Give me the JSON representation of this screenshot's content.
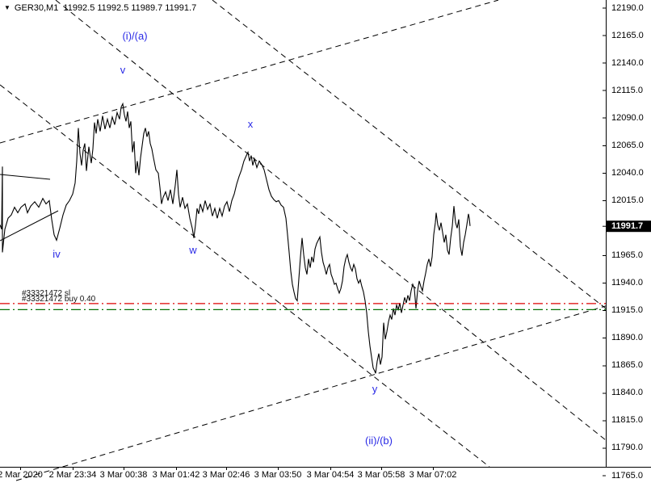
{
  "header": {
    "dropdown_icon": "▼",
    "symbol": "GER30,M1",
    "open": "11992.5",
    "high": "11992.5",
    "low": "11989.7",
    "close": "11991.7"
  },
  "chart_data": {
    "type": "line",
    "title": "GER30 M1 line chart with Elliott wave annotations",
    "symbol": "GER30",
    "period": "M1",
    "grid": false,
    "colors": {
      "background": "#ffffff",
      "price_line": "#000000",
      "trendline": "#000000",
      "wave_label": "#2a2ae6",
      "axis_text": "#000000",
      "sl_line": "#dd0000",
      "buy_line": "#067006",
      "price_tag_bg": "#000000",
      "price_tag_text": "#ffffff"
    },
    "x_axis": {
      "labels": [
        {
          "text": "2 Mar 2020",
          "t": 25
        },
        {
          "text": "2 Mar 23:34",
          "t": 90
        },
        {
          "text": "3 Mar 00:38",
          "t": 153
        },
        {
          "text": "3 Mar 01:42",
          "t": 218
        },
        {
          "text": "3 Mar 02:46",
          "t": 280
        },
        {
          "text": "3 Mar 03:50",
          "t": 344
        },
        {
          "text": "3 Mar 04:54",
          "t": 409
        },
        {
          "text": "3 Mar 05:58",
          "t": 472
        },
        {
          "text": "3 Mar 07:02",
          "t": 536
        }
      ]
    },
    "y_axis": {
      "labels": [
        12190.0,
        12165.0,
        12140.0,
        12115.0,
        12090.0,
        12065.0,
        12040.0,
        12015.0,
        11965.0,
        11940.0,
        11915.0,
        11890.0,
        11865.0,
        11840.0,
        11815.0,
        11790.0,
        11765.0
      ],
      "min": 11765.0,
      "max": 12190.0
    },
    "current_price": 11991.7,
    "series": {
      "name": "GER30 M1 close",
      "points": [
        [
          0,
          11993
        ],
        [
          2,
          11989
        ],
        [
          3,
          12046
        ],
        [
          3,
          11968
        ],
        [
          6,
          11989
        ],
        [
          10,
          11999
        ],
        [
          14,
          12002
        ],
        [
          18,
          12009
        ],
        [
          22,
          12004
        ],
        [
          26,
          12009
        ],
        [
          31,
          12012
        ],
        [
          34,
          12004
        ],
        [
          38,
          12010
        ],
        [
          43,
          12014
        ],
        [
          48,
          12009
        ],
        [
          53,
          12017
        ],
        [
          57,
          12012
        ],
        [
          61,
          12015
        ],
        [
          64,
          11998
        ],
        [
          67,
          11984
        ],
        [
          70,
          11979
        ],
        [
          74,
          11990
        ],
        [
          78,
          12002
        ],
        [
          82,
          12011
        ],
        [
          86,
          12015
        ],
        [
          90,
          12021
        ],
        [
          93,
          12031
        ],
        [
          95,
          12051
        ],
        [
          97,
          12081
        ],
        [
          99,
          12058
        ],
        [
          101,
          12047
        ],
        [
          103,
          12061
        ],
        [
          105,
          12067
        ],
        [
          107,
          12042
        ],
        [
          110,
          12064
        ],
        [
          113,
          12049
        ],
        [
          115,
          12062
        ],
        [
          117,
          12086
        ],
        [
          119,
          12076
        ],
        [
          121,
          12089
        ],
        [
          124,
          12078
        ],
        [
          127,
          12092
        ],
        [
          130,
          12080
        ],
        [
          133,
          12089
        ],
        [
          136,
          12081
        ],
        [
          139,
          12091
        ],
        [
          142,
          12084
        ],
        [
          145,
          12095
        ],
        [
          148,
          12089
        ],
        [
          150,
          12100
        ],
        [
          152,
          12103
        ],
        [
          154,
          12093
        ],
        [
          156,
          12087
        ],
        [
          158,
          12096
        ],
        [
          160,
          12081
        ],
        [
          162,
          12087
        ],
        [
          164,
          12059
        ],
        [
          166,
          12069
        ],
        [
          168,
          12040
        ],
        [
          170,
          12051
        ],
        [
          172,
          12038
        ],
        [
          174,
          12054
        ],
        [
          176,
          12065
        ],
        [
          178,
          12076
        ],
        [
          180,
          12081
        ],
        [
          182,
          12073
        ],
        [
          184,
          12078
        ],
        [
          186,
          12067
        ],
        [
          188,
          12062
        ],
        [
          190,
          12054
        ],
        [
          193,
          12043
        ],
        [
          196,
          12040
        ],
        [
          198,
          12027
        ],
        [
          200,
          12012
        ],
        [
          202,
          12018
        ],
        [
          205,
          12023
        ],
        [
          208,
          12015
        ],
        [
          211,
          12025
        ],
        [
          214,
          12012
        ],
        [
          217,
          12029
        ],
        [
          219,
          12043
        ],
        [
          221,
          12021
        ],
        [
          223,
          12009
        ],
        [
          226,
          12018
        ],
        [
          229,
          12008
        ],
        [
          232,
          12012
        ],
        [
          235,
          11999
        ],
        [
          238,
          11990
        ],
        [
          240,
          11981
        ],
        [
          242,
          11993
        ],
        [
          244,
          12008
        ],
        [
          246,
          12003
        ],
        [
          248,
          12012
        ],
        [
          251,
          12005
        ],
        [
          254,
          12015
        ],
        [
          257,
          12007
        ],
        [
          260,
          12012
        ],
        [
          263,
          12001
        ],
        [
          266,
          12008
        ],
        [
          269,
          11999
        ],
        [
          272,
          12008
        ],
        [
          275,
          12001
        ],
        [
          278,
          12010
        ],
        [
          281,
          12014
        ],
        [
          284,
          12005
        ],
        [
          287,
          12015
        ],
        [
          290,
          12021
        ],
        [
          293,
          12030
        ],
        [
          296,
          12037
        ],
        [
          299,
          12043
        ],
        [
          302,
          12051
        ],
        [
          305,
          12056
        ],
        [
          307,
          12059
        ],
        [
          309,
          12051
        ],
        [
          311,
          12056
        ],
        [
          313,
          12047
        ],
        [
          315,
          12053
        ],
        [
          318,
          12045
        ],
        [
          321,
          12051
        ],
        [
          324,
          12048
        ],
        [
          327,
          12043
        ],
        [
          330,
          12034
        ],
        [
          333,
          12025
        ],
        [
          336,
          12019
        ],
        [
          339,
          12016
        ],
        [
          342,
          12014
        ],
        [
          345,
          12015
        ],
        [
          348,
          12011
        ],
        [
          351,
          12009
        ],
        [
          354,
          11999
        ],
        [
          356,
          11984
        ],
        [
          358,
          11968
        ],
        [
          360,
          11951
        ],
        [
          362,
          11939
        ],
        [
          364,
          11932
        ],
        [
          366,
          11926
        ],
        [
          368,
          11924
        ],
        [
          370,
          11944
        ],
        [
          372,
          11964
        ],
        [
          374,
          11981
        ],
        [
          376,
          11966
        ],
        [
          378,
          11954
        ],
        [
          380,
          11948
        ],
        [
          382,
          11962
        ],
        [
          384,
          11954
        ],
        [
          386,
          11964
        ],
        [
          388,
          11959
        ],
        [
          390,
          11971
        ],
        [
          392,
          11976
        ],
        [
          394,
          11979
        ],
        [
          396,
          11982
        ],
        [
          398,
          11968
        ],
        [
          400,
          11959
        ],
        [
          402,
          11954
        ],
        [
          404,
          11948
        ],
        [
          406,
          11954
        ],
        [
          408,
          11957
        ],
        [
          410,
          11948
        ],
        [
          412,
          11944
        ],
        [
          414,
          11939
        ],
        [
          416,
          11940
        ],
        [
          418,
          11935
        ],
        [
          420,
          11931
        ],
        [
          422,
          11935
        ],
        [
          424,
          11942
        ],
        [
          426,
          11955
        ],
        [
          428,
          11962
        ],
        [
          430,
          11966
        ],
        [
          432,
          11959
        ],
        [
          434,
          11954
        ],
        [
          436,
          11951
        ],
        [
          438,
          11957
        ],
        [
          440,
          11953
        ],
        [
          442,
          11944
        ],
        [
          444,
          11940
        ],
        [
          446,
          11943
        ],
        [
          448,
          11937
        ],
        [
          450,
          11932
        ],
        [
          452,
          11924
        ],
        [
          454,
          11913
        ],
        [
          456,
          11896
        ],
        [
          458,
          11883
        ],
        [
          460,
          11873
        ],
        [
          462,
          11863
        ],
        [
          464,
          11860
        ],
        [
          465,
          11858
        ],
        [
          467,
          11869
        ],
        [
          469,
          11876
        ],
        [
          471,
          11866
        ],
        [
          473,
          11873
        ],
        [
          475,
          11904
        ],
        [
          477,
          11889
        ],
        [
          479,
          11896
        ],
        [
          481,
          11905
        ],
        [
          483,
          11911
        ],
        [
          485,
          11907
        ],
        [
          487,
          11917
        ],
        [
          489,
          11911
        ],
        [
          491,
          11920
        ],
        [
          493,
          11916
        ],
        [
          495,
          11922
        ],
        [
          497,
          11913
        ],
        [
          499,
          11920
        ],
        [
          501,
          11927
        ],
        [
          503,
          11922
        ],
        [
          505,
          11929
        ],
        [
          507,
          11924
        ],
        [
          509,
          11933
        ],
        [
          511,
          11939
        ],
        [
          513,
          11935
        ],
        [
          515,
          11917
        ],
        [
          517,
          11933
        ],
        [
          519,
          11942
        ],
        [
          521,
          11937
        ],
        [
          523,
          11933
        ],
        [
          525,
          11942
        ],
        [
          527,
          11949
        ],
        [
          529,
          11957
        ],
        [
          531,
          11962
        ],
        [
          533,
          11955
        ],
        [
          535,
          11964
        ],
        [
          537,
          11984
        ],
        [
          539,
          11995
        ],
        [
          540,
          12004
        ],
        [
          542,
          11993
        ],
        [
          544,
          11988
        ],
        [
          546,
          11995
        ],
        [
          548,
          11986
        ],
        [
          550,
          11977
        ],
        [
          552,
          11984
        ],
        [
          554,
          11970
        ],
        [
          556,
          11966
        ],
        [
          558,
          11981
        ],
        [
          560,
          11992
        ],
        [
          562,
          12010
        ],
        [
          564,
          11995
        ],
        [
          566,
          11990
        ],
        [
          568,
          11998
        ],
        [
          570,
          11973
        ],
        [
          572,
          11965
        ],
        [
          574,
          11977
        ],
        [
          576,
          11984
        ],
        [
          578,
          11993
        ],
        [
          580,
          12003
        ],
        [
          581,
          11999
        ],
        [
          582,
          11992
        ]
      ]
    },
    "order_lines": [
      {
        "label": "#33321472 sl",
        "price": 11921.4,
        "color": "#dd0000",
        "style": "dash-dot"
      },
      {
        "label": "#33321472 buy 0.40",
        "price": 11915.9,
        "color": "#067006",
        "style": "dash-dot"
      }
    ],
    "trendlines": [
      {
        "name": "descending-channel-upper",
        "style": "dashed",
        "points": [
          [
            69,
            12197.3
          ],
          [
            750,
            11797.3
          ]
        ]
      },
      {
        "name": "descending-channel-middle",
        "style": "dashed",
        "points": [
          [
            263,
            12197.3
          ],
          [
            750,
            11917.0
          ]
        ]
      },
      {
        "name": "descending-channel-lower",
        "style": "dashed",
        "points": [
          [
            0,
            12120.3
          ],
          [
            606,
            11773.1
          ]
        ]
      },
      {
        "name": "ascending-line-upper",
        "style": "dashed",
        "points": [
          [
            0,
            12067.4
          ],
          [
            617,
            12197.3
          ]
        ]
      },
      {
        "name": "ascending-line-lower",
        "style": "dashed",
        "points": [
          [
            20,
            11760.6
          ],
          [
            750,
            11919.2
          ]
        ]
      },
      {
        "name": "wedge-line-upper",
        "style": "solid",
        "points": [
          [
            0,
            12038.8
          ],
          [
            62,
            12034.4
          ]
        ]
      },
      {
        "name": "wedge-line-lower",
        "style": "solid",
        "points": [
          [
            0,
            11978.6
          ],
          [
            72,
            12005.8
          ]
        ]
      }
    ],
    "wave_labels": [
      {
        "text": "(i)/(a)",
        "t": 167,
        "price": 12164.3
      },
      {
        "text": "v",
        "t": 152,
        "price": 12133.5
      },
      {
        "text": "x",
        "t": 310,
        "price": 12084.3
      },
      {
        "text": "w",
        "t": 239,
        "price": 11969.8
      },
      {
        "text": "iv",
        "t": 70,
        "price": 11966.1
      },
      {
        "text": "y",
        "t": 464,
        "price": 11843.6
      },
      {
        "text": "(ii)/(b)",
        "t": 469,
        "price": 11796.6
      }
    ]
  }
}
